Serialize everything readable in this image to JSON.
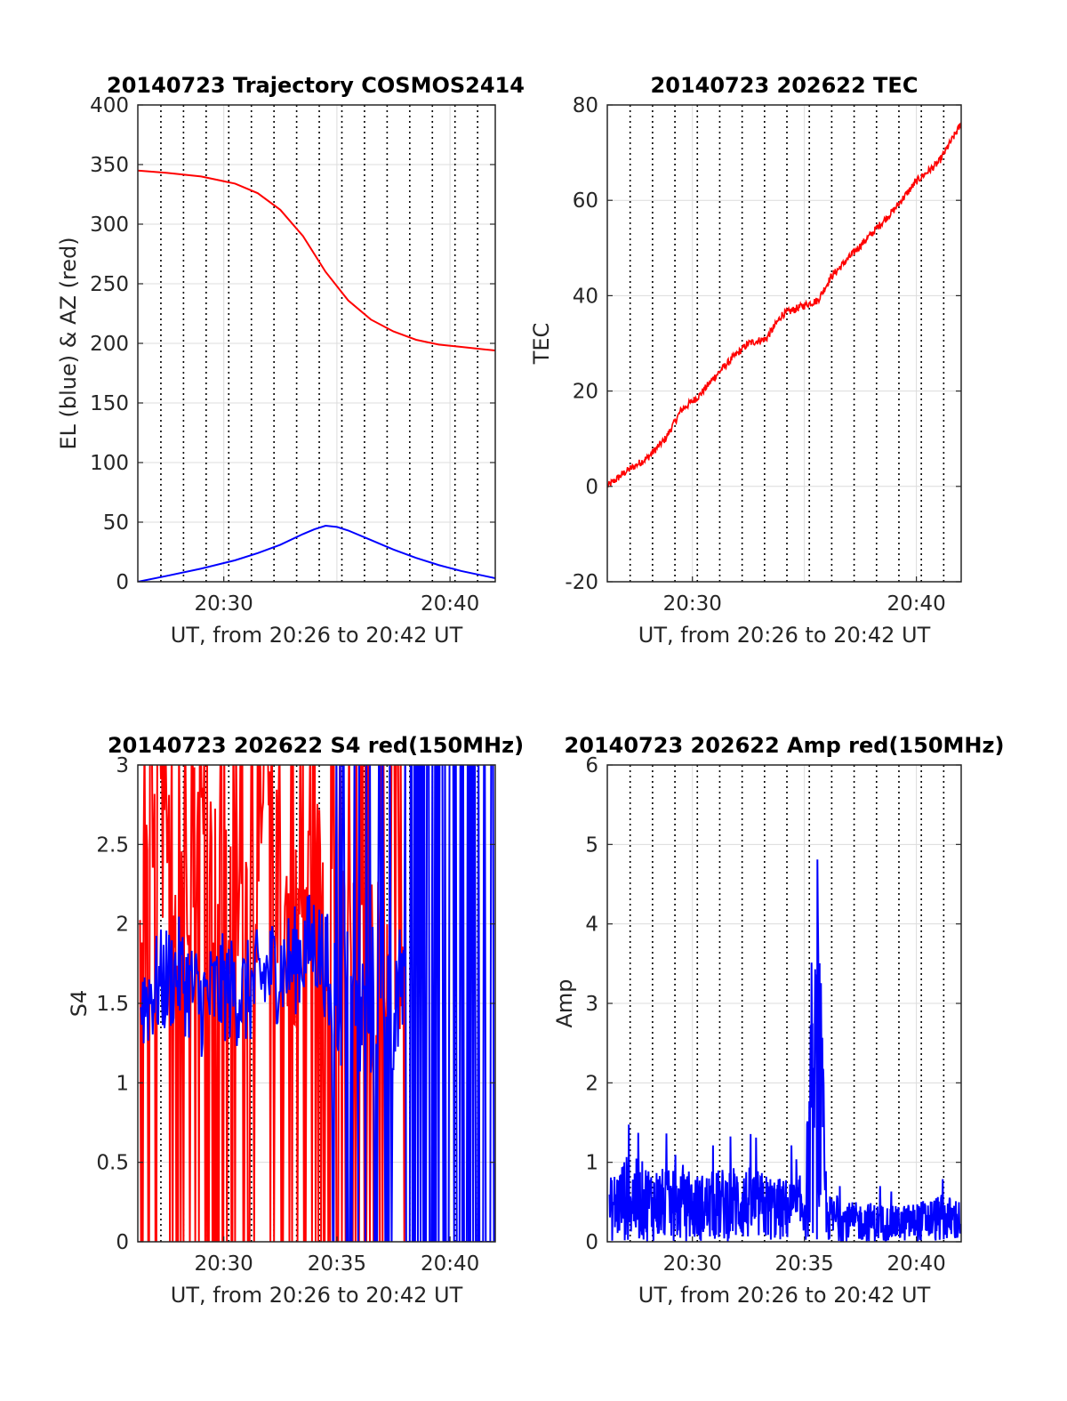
{
  "chart_data": [
    {
      "type": "line",
      "title": "20140723 Trajectory COSMOS2414",
      "xlabel": "UT, from 20:26 to 20:42 UT",
      "ylabel": "EL (blue) & AZ (red)",
      "xlim": [
        26.2,
        42.0
      ],
      "ylim": [
        0,
        400
      ],
      "xticks": [
        30,
        40
      ],
      "xtick_labels": [
        "20:30",
        "20:40"
      ],
      "yticks": [
        0,
        50,
        100,
        150,
        200,
        250,
        300,
        350,
        400
      ],
      "ytick_labels": [
        "0",
        "50",
        "100",
        "150",
        "200",
        "250",
        "300",
        "350",
        "400"
      ],
      "grid": true,
      "series": [
        {
          "color": "#ff0000",
          "x": [
            26.2,
            27.5,
            29,
            30.5,
            31.5,
            32.5,
            33.5,
            34.5,
            35.5,
            36.5,
            37.5,
            38.5,
            39.5,
            40.5,
            41.5,
            42.0
          ],
          "y": [
            345,
            343,
            340,
            334,
            326,
            312,
            290,
            260,
            236,
            220,
            210,
            203,
            199,
            197,
            195,
            194
          ]
        },
        {
          "color": "#0000ff",
          "x": [
            26.2,
            27.5,
            29,
            30.5,
            31.5,
            32.5,
            33.5,
            34.0,
            34.5,
            35.0,
            35.5,
            36.5,
            37.5,
            38.5,
            39.5,
            40.5,
            41.5,
            42.0
          ],
          "y": [
            0,
            5,
            11,
            18,
            24,
            31,
            40,
            44,
            47,
            46,
            43,
            35,
            27,
            20,
            14,
            9,
            5,
            3
          ]
        }
      ]
    },
    {
      "type": "line",
      "title": "20140723 202622 TEC",
      "xlabel": "UT, from 20:26 to 20:42 UT",
      "ylabel": "TEC",
      "xlim": [
        26.2,
        42.0
      ],
      "ylim": [
        -20,
        80
      ],
      "xticks": [
        30,
        40
      ],
      "xtick_labels": [
        "20:30",
        "20:40"
      ],
      "yticks": [
        -20,
        0,
        20,
        40,
        60,
        80
      ],
      "ytick_labels": [
        "-20",
        "0",
        "20",
        "40",
        "60",
        "80"
      ],
      "grid": true,
      "series": [
        {
          "color": "#ff0000",
          "x": [
            26.2,
            27,
            28,
            28.8,
            29.5,
            30.3,
            31,
            31.8,
            32.5,
            33.3,
            34,
            35,
            35.6,
            36.2,
            37,
            38,
            39,
            40,
            41,
            42
          ],
          "y": [
            0,
            3,
            6,
            10,
            16,
            19,
            23,
            27,
            30,
            31,
            36,
            38,
            39,
            44,
            48,
            53,
            58,
            64,
            68,
            76
          ]
        }
      ]
    },
    {
      "type": "line",
      "title": "20140723 202622 S4 red(150MHz)",
      "xlabel": "UT, from 20:26 to 20:42 UT",
      "ylabel": "S4",
      "xlim": [
        26.2,
        42.0
      ],
      "ylim": [
        0,
        3
      ],
      "xticks": [
        30,
        35,
        40
      ],
      "xtick_labels": [
        "20:30",
        "20:35",
        "20:40"
      ],
      "yticks": [
        0,
        0.5,
        1,
        1.5,
        2,
        2.5,
        3
      ],
      "ytick_labels": [
        "0",
        "0.5",
        "1",
        "1.5",
        "2",
        "2.5",
        "3"
      ],
      "grid": true,
      "series": [
        {
          "color": "#ff0000",
          "x": [
            26.3,
            27.0,
            28.0,
            29.0,
            30.0,
            31.0,
            32.0,
            33.0,
            34.0,
            35.0,
            36.0,
            37.0,
            38.0,
            39.0,
            40.0,
            41.0,
            42.0
          ],
          "y": [
            1.9,
            2.4,
            2.3,
            2.6,
            2.0,
            2.2,
            2.5,
            1.9,
            2.3,
            2.0,
            1.6,
            1.8,
            1.7,
            2.8,
            3.0,
            3.0,
            3.0
          ]
        },
        {
          "color": "#0000ff",
          "x": [
            26.3,
            27.0,
            28.0,
            29.0,
            30.0,
            31.0,
            32.0,
            33.0,
            34.0,
            35.0,
            36.0,
            37.0,
            38.0,
            39.0,
            40.0,
            41.0,
            42.0
          ],
          "y": [
            1.5,
            1.6,
            1.7,
            1.5,
            1.6,
            1.55,
            1.7,
            1.75,
            1.9,
            1.6,
            1.4,
            1.6,
            1.5,
            1.6,
            1.6,
            1.6,
            1.6
          ]
        }
      ]
    },
    {
      "type": "line",
      "title": "20140723 202622 Amp red(150MHz)",
      "xlabel": "UT, from 20:26 to 20:42 UT",
      "ylabel": "Amp",
      "xlim": [
        26.2,
        42.0
      ],
      "ylim": [
        0,
        6
      ],
      "xticks": [
        30,
        35,
        40
      ],
      "xtick_labels": [
        "20:30",
        "20:35",
        "20:40"
      ],
      "yticks": [
        0,
        1,
        2,
        3,
        4,
        5,
        6
      ],
      "ytick_labels": [
        "0",
        "1",
        "2",
        "3",
        "4",
        "5",
        "6"
      ],
      "grid": true,
      "series": [
        {
          "color": "#0000ff",
          "x": [
            26.3,
            27.0,
            28.0,
            29.0,
            30.0,
            31.0,
            32.0,
            33.0,
            34.0,
            35.0,
            35.5,
            35.6,
            35.7,
            36.0,
            37.0,
            38.0,
            39.0,
            40.0,
            41.0,
            42.0
          ],
          "y": [
            0.8,
            1.1,
            1.0,
            0.9,
            0.85,
            0.9,
            1.0,
            0.9,
            0.8,
            0.85,
            3.7,
            4.75,
            3.7,
            0.6,
            0.5,
            0.5,
            0.45,
            0.5,
            0.6,
            0.55
          ]
        }
      ]
    }
  ]
}
